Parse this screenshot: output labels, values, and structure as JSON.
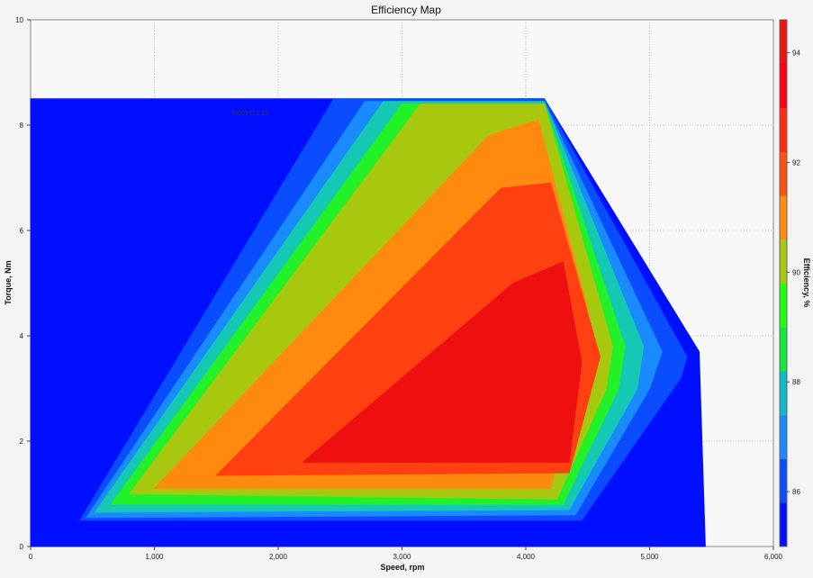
{
  "chart_data": {
    "type": "heatmap",
    "title": "Efficiency Map",
    "xlabel": "Speed, rpm",
    "ylabel": "Torque, Nm",
    "colorbar_label": "Efficiency, %",
    "xlim": [
      0,
      6000
    ],
    "ylim": [
      0,
      10
    ],
    "x_ticks": [
      0,
      1000,
      2000,
      3000,
      4000,
      5000,
      6000
    ],
    "x_tick_labels": [
      "0",
      "1,000",
      "2,000",
      "3,000",
      "4,000",
      "5,000",
      "6,000"
    ],
    "y_ticks": [
      0,
      2,
      4,
      6,
      8,
      10
    ],
    "y_tick_labels": [
      "0",
      "2",
      "4",
      "6",
      "8",
      "10"
    ],
    "colorbar_range": [
      85,
      94.6
    ],
    "colorbar_ticks": [
      86,
      88,
      90,
      92,
      94
    ],
    "colorbar_tick_labels": [
      "86",
      "88",
      "90",
      "92",
      "94"
    ],
    "colorbar_colors": [
      "#0010ff",
      "#0a4dff",
      "#1a8aff",
      "#10b8c8",
      "#14e63a",
      "#22ff10",
      "#a8c810",
      "#ff8a10",
      "#ff5010",
      "#ff2a10",
      "#ff0010",
      "#ef1010"
    ],
    "grid": true,
    "operating_envelope": [
      [
        0,
        8.5
      ],
      [
        4150,
        8.5
      ],
      [
        5400,
        3.7
      ],
      [
        5450,
        0
      ],
      [
        0,
        0
      ]
    ],
    "contours": [
      {
        "efficiency": 85,
        "color": "#0010ff",
        "boundary": [
          [
            0,
            8.5
          ],
          [
            4150,
            8.5
          ],
          [
            5400,
            3.7
          ],
          [
            5450,
            0
          ],
          [
            0,
            0
          ]
        ]
      },
      {
        "efficiency": 86,
        "color": "#0a4dff",
        "boundary": [
          [
            400,
            0.5
          ],
          [
            2450,
            8.5
          ],
          [
            4150,
            8.5
          ],
          [
            5300,
            3.6
          ],
          [
            5250,
            3.2
          ],
          [
            4450,
            0.5
          ]
        ]
      },
      {
        "efficiency": 87,
        "color": "#1a8aff",
        "boundary": [
          [
            450,
            0.55
          ],
          [
            2700,
            8.45
          ],
          [
            4150,
            8.45
          ],
          [
            5100,
            3.7
          ],
          [
            5000,
            3.0
          ],
          [
            4400,
            0.6
          ]
        ]
      },
      {
        "efficiency": 88,
        "color": "#14c8b4",
        "boundary": [
          [
            520,
            0.65
          ],
          [
            2850,
            8.45
          ],
          [
            4150,
            8.45
          ],
          [
            4950,
            3.8
          ],
          [
            4900,
            3.0
          ],
          [
            4350,
            0.7
          ]
        ]
      },
      {
        "efficiency": 89,
        "color": "#22f028",
        "boundary": [
          [
            650,
            0.8
          ],
          [
            3000,
            8.4
          ],
          [
            4150,
            8.4
          ],
          [
            4800,
            3.8
          ],
          [
            4750,
            3.0
          ],
          [
            4300,
            0.8
          ]
        ]
      },
      {
        "efficiency": 91,
        "color": "#a8c810",
        "boundary": [
          [
            800,
            1.0
          ],
          [
            3150,
            8.4
          ],
          [
            4150,
            8.4
          ],
          [
            4700,
            3.8
          ],
          [
            4650,
            3.0
          ],
          [
            4250,
            0.9
          ]
        ]
      },
      {
        "efficiency": 92,
        "color": "#ff8a10",
        "boundary": [
          [
            1000,
            1.1
          ],
          [
            3700,
            7.8
          ],
          [
            4100,
            8.1
          ],
          [
            4500,
            4.5
          ],
          [
            4400,
            3.0
          ],
          [
            4200,
            1.1
          ]
        ]
      },
      {
        "efficiency": 93,
        "color": "#ff4010",
        "boundary": [
          [
            1500,
            1.35
          ],
          [
            3800,
            6.8
          ],
          [
            4200,
            6.9
          ],
          [
            4600,
            3.6
          ],
          [
            4350,
            1.4
          ]
        ]
      },
      {
        "efficiency": 94,
        "color": "#ee1010",
        "boundary": [
          [
            2200,
            1.6
          ],
          [
            3900,
            5.0
          ],
          [
            4300,
            5.4
          ],
          [
            4450,
            3.5
          ],
          [
            4350,
            1.6
          ]
        ]
      }
    ],
    "annotation": "M003 C.1.15"
  }
}
